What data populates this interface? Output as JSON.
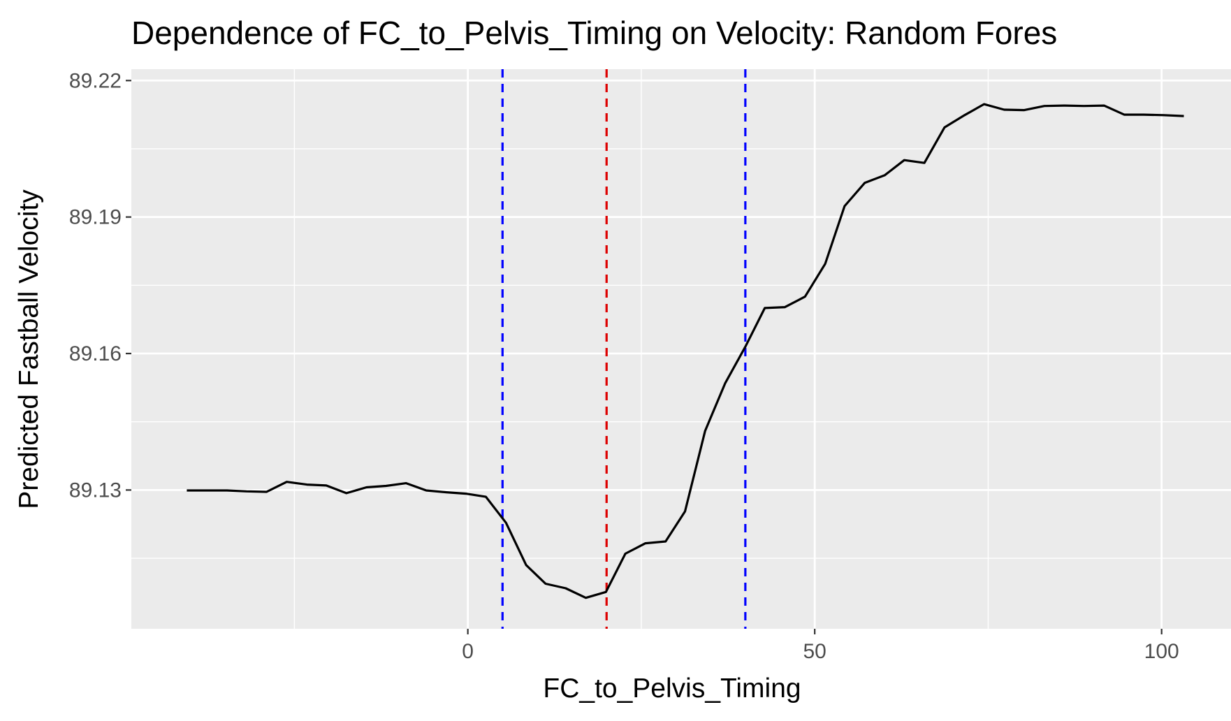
{
  "chart_data": {
    "type": "line",
    "title": "Dependence of FC_to_Pelvis_Timing on Velocity: Random Fores",
    "xlabel": "FC_to_Pelvis_Timing",
    "ylabel": "Predicted Fastball Velocity",
    "xlim": [
      -48.5,
      110
    ],
    "ylim": [
      89.0995,
      89.2225
    ],
    "x_ticks": [
      0,
      50,
      100
    ],
    "x_tick_labels": [
      "0",
      "50",
      "100"
    ],
    "y_ticks": [
      89.13,
      89.16,
      89.19,
      89.22
    ],
    "y_tick_labels": [
      "89.13",
      "89.16",
      "89.19",
      "89.22"
    ],
    "grid": true,
    "background": "#ebebeb",
    "series": [
      {
        "color": "#000000",
        "x": [
          -40.5,
          -37.6,
          -34.7,
          -31.9,
          -29.0,
          -26.1,
          -23.2,
          -20.4,
          -17.5,
          -14.6,
          -11.8,
          -8.9,
          -6.0,
          -3.1,
          -0.3,
          2.6,
          5.5,
          8.4,
          11.2,
          14.1,
          17.0,
          19.9,
          22.7,
          25.6,
          28.5,
          31.3,
          34.2,
          37.1,
          40.0,
          42.8,
          45.7,
          48.6,
          51.5,
          54.3,
          57.2,
          60.1,
          62.9,
          65.8,
          68.7,
          71.6,
          74.4,
          77.3,
          80.2,
          83.1,
          85.9,
          88.8,
          91.7,
          94.6,
          97.4,
          100.3,
          103.2
        ],
        "y": [
          89.1299,
          89.1299,
          89.1299,
          89.1297,
          89.1296,
          89.1318,
          89.1312,
          89.131,
          89.1293,
          89.1306,
          89.1309,
          89.1315,
          89.1299,
          89.1295,
          89.1292,
          89.1285,
          89.1228,
          89.1135,
          89.1094,
          89.1084,
          89.1063,
          89.1076,
          89.116,
          89.1183,
          89.1187,
          89.1253,
          89.143,
          89.1535,
          89.1615,
          89.17,
          89.1702,
          89.1725,
          89.1797,
          89.1924,
          89.1975,
          89.1992,
          89.2025,
          89.2019,
          89.2097,
          89.2124,
          89.2148,
          89.2136,
          89.2135,
          89.2144,
          89.2145,
          89.2144,
          89.2145,
          89.2125,
          89.2125,
          89.2124,
          89.2122
        ]
      }
    ],
    "vlines": [
      {
        "x": 5.0,
        "color": "#0000ff",
        "style": "dashed"
      },
      {
        "x": 20.0,
        "color": "#dd0000",
        "style": "dashed"
      },
      {
        "x": 40.0,
        "color": "#0000ff",
        "style": "dashed"
      }
    ]
  }
}
